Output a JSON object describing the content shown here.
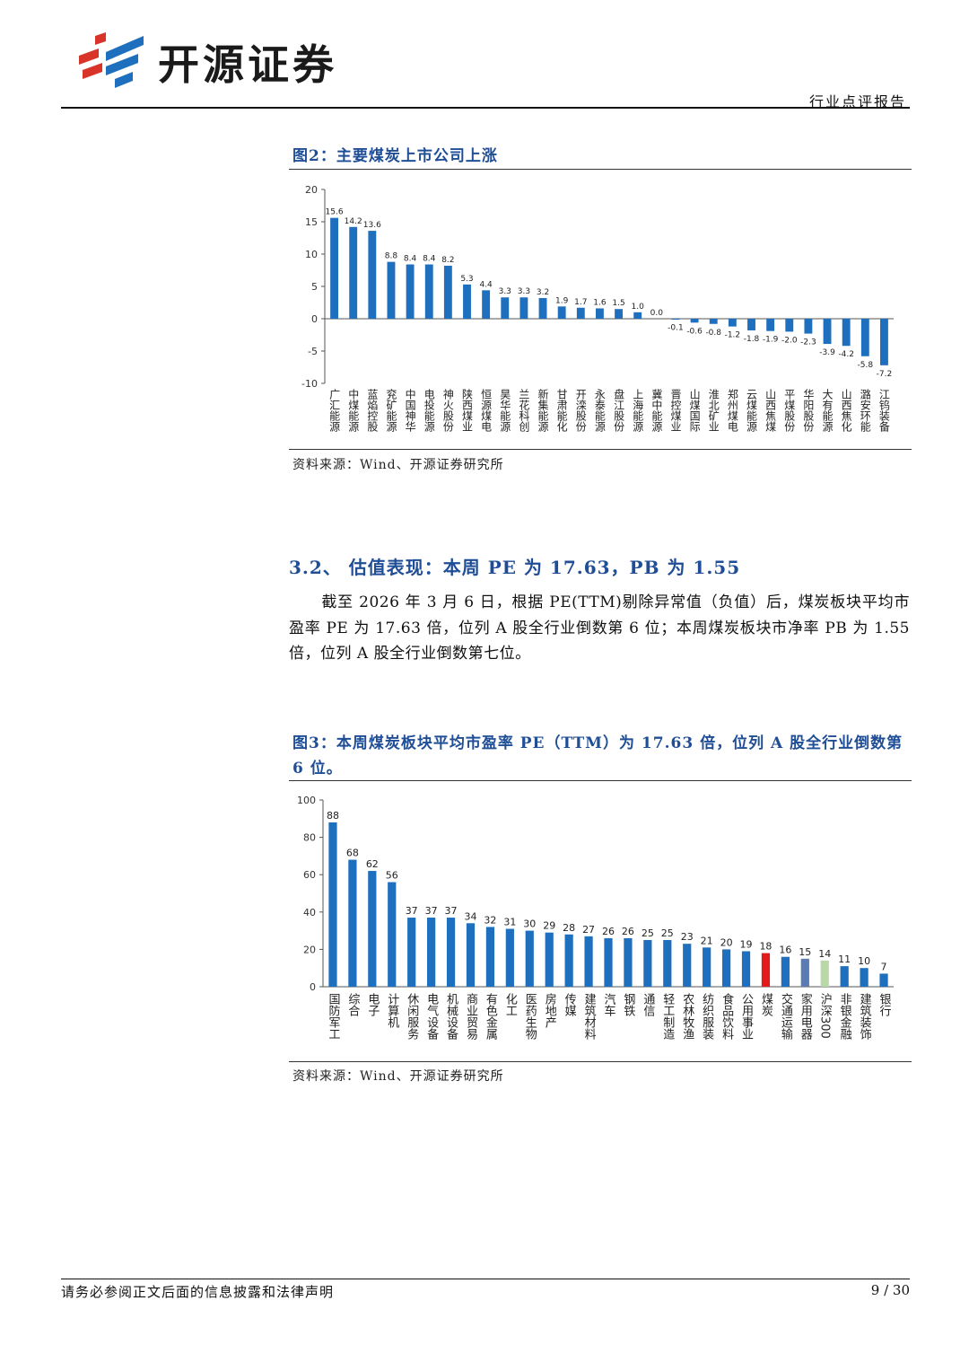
{
  "header": {
    "brand": "开源证券",
    "report_type": "行业点评报告"
  },
  "figure2": {
    "title": "图2：主要煤炭上市公司上涨",
    "source": "资料来源：Wind、开源证券研究所"
  },
  "section": {
    "title": "3.2、 估值表现：本周 PE 为 17.63，PB 为 1.55",
    "paragraph": "截至 2026 年 3 月 6 日，根据 PE(TTM)剔除异常值（负值）后，煤炭板块平均市盈率 PE 为 17.63 倍，位列 A 股全行业倒数第 6 位；本周煤炭板块市净率 PB 为 1.55 倍，位列 A 股全行业倒数第七位。"
  },
  "figure3": {
    "title": "图3：本周煤炭板块平均市盈率 PE（TTM）为 17.63 倍，位列 A 股全行业倒数第 6 位。",
    "source": "资料来源：Wind、开源证券研究所"
  },
  "footer": {
    "disclaimer": "请务必参阅正文后面的信息披露和法律声明",
    "page": "9 / 30"
  },
  "chart_data": [
    {
      "type": "bar",
      "categories": [
        "广汇能源",
        "中煤能源",
        "蓝焰控股",
        "兖矿能源",
        "中国神华",
        "电投能源",
        "神火股份",
        "陕西煤业",
        "恒源煤电",
        "昊华能源",
        "兰花科创",
        "新集能源",
        "甘肃能化",
        "开滦股份",
        "永泰能源",
        "盘江股份",
        "上海能源",
        "冀中能源",
        "晋控煤业",
        "山煤国际",
        "淮北矿业",
        "郑州煤电",
        "云煤能源",
        "山西焦煤",
        "平煤股份",
        "华阳股份",
        "大有能源",
        "山西焦化",
        "潞安环能",
        "江钨装备"
      ],
      "values": [
        15.6,
        14.2,
        13.6,
        8.8,
        8.4,
        8.4,
        8.2,
        5.3,
        4.4,
        3.3,
        3.3,
        3.2,
        1.9,
        1.7,
        1.6,
        1.5,
        1.0,
        0.0,
        -0.1,
        -0.6,
        -0.8,
        -1.2,
        -1.8,
        -1.9,
        -2.0,
        -2.3,
        -3.9,
        -4.2,
        -5.8,
        -7.2
      ],
      "labels": [
        "15.6",
        "14.2",
        "13.6",
        "8.8",
        "8.4",
        "8.4",
        "8.2",
        "5.3",
        "4.4",
        "3.3",
        "3.3",
        "3.2",
        "1.9",
        "1.7",
        "1.6",
        "1.5",
        "1.0",
        "0.0",
        "-0.1",
        "-0.6",
        "-0.8",
        "-1.2",
        "-1.8",
        "-1.9",
        "-2.0",
        "-2.3",
        "-3.9",
        "-4.2",
        "-5.8",
        "-7.2"
      ],
      "yticks": [
        "20",
        "15",
        "10",
        "5",
        "0",
        "-5",
        "-10"
      ],
      "ylim": [
        -10,
        20
      ],
      "color": "#1f6fbf",
      "grid": false
    },
    {
      "type": "bar",
      "categories": [
        "国防军工",
        "综合",
        "电子",
        "计算机",
        "休闲服务",
        "电气设备",
        "机械设备",
        "商业贸易",
        "有色金属",
        "化工",
        "医药生物",
        "房地产",
        "传媒",
        "建筑材料",
        "汽车",
        "钢铁",
        "通信",
        "轻工制造",
        "农林牧渔",
        "纺织服装",
        "食品饮料",
        "公用事业",
        "煤炭",
        "交通运输",
        "家用电器",
        "沪深300",
        "非银金融",
        "建筑装饰",
        "银行"
      ],
      "values": [
        88,
        68,
        62,
        56,
        37,
        37,
        37,
        34,
        32,
        31,
        30,
        29,
        28,
        27,
        26,
        26,
        25,
        25,
        23,
        21,
        20,
        19,
        18,
        16,
        15,
        14,
        11,
        10,
        7
      ],
      "labels": [
        "88",
        "68",
        "62",
        "56",
        "37",
        "37",
        "37",
        "34",
        "32",
        "31",
        "30",
        "29",
        "28",
        "27",
        "26",
        "26",
        "25",
        "25",
        "23",
        "21",
        "20",
        "19",
        "18",
        "16",
        "15",
        "14",
        "11",
        "10",
        "7"
      ],
      "yticks": [
        "100",
        "80",
        "60",
        "40",
        "20",
        "0"
      ],
      "ylim": [
        0,
        100
      ],
      "colors": {
        "default": "#1f6fbf",
        "煤炭": "#e31a1c",
        "家用电器": "#5b7bb5",
        "沪深300": "#b9d8a8"
      },
      "grid": false
    }
  ]
}
